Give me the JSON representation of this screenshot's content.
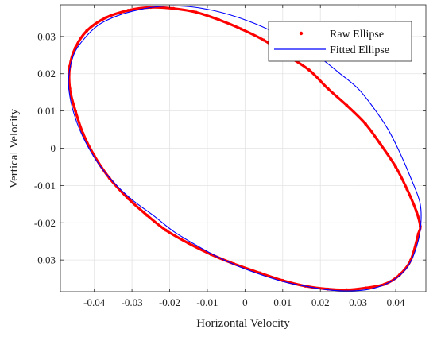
{
  "chart_data": {
    "type": "scatter",
    "title": "",
    "xlabel": "Horizontal Velocity",
    "ylabel": "Vertical Velocity",
    "xlim": [
      -0.049,
      0.048
    ],
    "ylim": [
      -0.0385,
      0.0385
    ],
    "xticks": [
      -0.04,
      -0.03,
      -0.02,
      -0.01,
      0,
      0.01,
      0.02,
      0.03,
      0.04
    ],
    "xtick_labels": [
      "-0.04",
      "-0.03",
      "-0.02",
      "-0.01",
      "0",
      "0.01",
      "0.02",
      "0.03",
      "0.04"
    ],
    "yticks": [
      0.03,
      0.02,
      0.01,
      0,
      -0.01,
      -0.02,
      -0.03
    ],
    "ytick_labels": [
      "0.03",
      "0.02",
      "0.01",
      "0",
      "-0.01",
      "-0.02",
      "-0.03"
    ],
    "grid": true,
    "legend_position": "top-right",
    "series": [
      {
        "name": "Raw Ellipse",
        "style": "markers",
        "color": "#ff0000",
        "x": [
          0.046,
          0.044,
          0.041,
          0.037,
          0.032,
          0.027,
          0.022,
          0.016,
          0.01,
          0.004,
          -0.003,
          -0.009,
          -0.015,
          -0.021,
          -0.026,
          -0.031,
          -0.036,
          -0.04,
          -0.043,
          -0.045,
          -0.0465,
          -0.0465,
          -0.045,
          -0.042,
          -0.037,
          -0.031,
          -0.025,
          -0.019,
          -0.013,
          -0.007,
          -0.001,
          0.005,
          0.011,
          0.017,
          0.022,
          0.027,
          0.032,
          0.036,
          0.04,
          0.043,
          0.0455,
          0.0465
        ],
        "y": [
          -0.023,
          -0.03,
          -0.034,
          -0.0365,
          -0.0375,
          -0.038,
          -0.0378,
          -0.037,
          -0.0355,
          -0.0335,
          -0.031,
          -0.0285,
          -0.0255,
          -0.022,
          -0.018,
          -0.0135,
          -0.008,
          -0.002,
          0.004,
          0.01,
          0.016,
          0.022,
          0.027,
          0.0315,
          0.035,
          0.037,
          0.0378,
          0.0375,
          0.0365,
          0.0345,
          0.032,
          0.029,
          0.025,
          0.021,
          0.016,
          0.0115,
          0.0065,
          0.001,
          -0.005,
          -0.011,
          -0.017,
          -0.021
        ]
      },
      {
        "name": "Fitted Ellipse",
        "style": "line",
        "color": "#0000ff",
        "x": [
          0.0465,
          0.045,
          0.043,
          0.04,
          0.036,
          0.032,
          0.027,
          0.022,
          0.017,
          0.011,
          0.005,
          -0.001,
          -0.007,
          -0.013,
          -0.019,
          -0.024,
          -0.03,
          -0.035,
          -0.039,
          -0.0425,
          -0.045,
          -0.0465,
          -0.0468,
          -0.0455,
          -0.043,
          -0.039,
          -0.034,
          -0.028,
          -0.022,
          -0.016,
          -0.01,
          -0.004,
          0.002,
          0.008,
          0.014,
          0.02,
          0.025,
          0.03,
          0.034,
          0.038,
          0.041,
          0.044,
          0.0465
        ],
        "y": [
          -0.022,
          -0.028,
          -0.032,
          -0.035,
          -0.037,
          -0.038,
          -0.0383,
          -0.038,
          -0.0372,
          -0.036,
          -0.0342,
          -0.032,
          -0.0293,
          -0.026,
          -0.0223,
          -0.0183,
          -0.0138,
          -0.009,
          -0.004,
          0.002,
          0.008,
          0.014,
          0.019,
          0.025,
          0.029,
          0.033,
          0.0355,
          0.0372,
          0.0381,
          0.0381,
          0.0373,
          0.0358,
          0.0337,
          0.031,
          0.0278,
          0.0242,
          0.0202,
          0.016,
          0.011,
          0.005,
          -0.001,
          -0.008,
          -0.015
        ]
      }
    ]
  }
}
